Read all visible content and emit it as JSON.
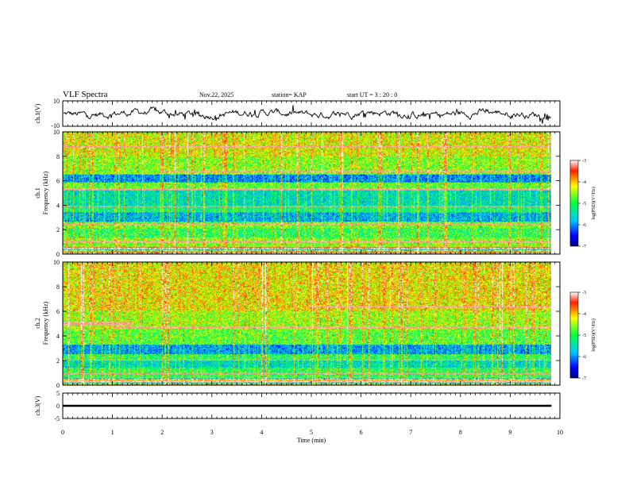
{
  "header": {
    "title": "VLF Spectra",
    "date": "Nov.22, 2025",
    "station": "station= KAP",
    "start_ut": "start  UT =   3  : 20 : 0"
  },
  "chart_data": [
    {
      "type": "line",
      "name": "ch1-waveform",
      "ylabel": "ch.1(V)",
      "ylim": [
        -10,
        10
      ],
      "yticks": [
        "10",
        "-10"
      ],
      "xlim": [
        0,
        10
      ],
      "x_extent": [
        0,
        9.83
      ],
      "y_typical_range": [
        -5,
        5
      ]
    },
    {
      "type": "heatmap",
      "name": "ch1-spectrogram",
      "ylabel": "ch.1\nFrequency (kHz)",
      "ylim": [
        0,
        10
      ],
      "yticks": [
        "0",
        "2",
        "4",
        "6",
        "8",
        "10"
      ],
      "xlim": [
        0,
        10
      ],
      "x_extent": [
        0,
        9.83
      ],
      "colorbar": {
        "label": "log(PSD)(V²/Hz)",
        "range": [
          -7,
          -3
        ],
        "ticks": [
          "-3",
          "-4",
          "-5",
          "-6",
          "-7"
        ]
      },
      "bands": [
        {
          "f": [
            0.0,
            0.6
          ],
          "level": "mixed"
        },
        {
          "f": [
            0.6,
            1.3
          ],
          "level": -4.6
        },
        {
          "f": [
            1.3,
            2.1
          ],
          "level": -5.0
        },
        {
          "f": [
            2.1,
            2.6
          ],
          "level": -4.7
        },
        {
          "f": [
            2.6,
            3.4
          ],
          "level": -5.8
        },
        {
          "f": [
            3.4,
            3.9
          ],
          "level": -5.2
        },
        {
          "f": [
            3.9,
            5.2
          ],
          "level": -5.5
        },
        {
          "f": [
            5.2,
            5.9
          ],
          "level": -4.8
        },
        {
          "f": [
            5.9,
            6.5
          ],
          "level": -6.0
        },
        {
          "f": [
            6.5,
            8.0
          ],
          "level": -4.6
        },
        {
          "f": [
            8.0,
            10.0
          ],
          "level": -4.3
        }
      ]
    },
    {
      "type": "heatmap",
      "name": "ch2-spectrogram",
      "ylabel": "ch.2\nFrequency (kHz)",
      "ylim": [
        0,
        10
      ],
      "yticks": [
        "0",
        "2",
        "4",
        "6",
        "8",
        "10"
      ],
      "xlim": [
        0,
        10
      ],
      "x_extent": [
        0,
        9.83
      ],
      "colorbar": {
        "label": "log(PSD)(V²/Hz)",
        "range": [
          -7,
          -3
        ],
        "ticks": [
          "-3",
          "-4",
          "-5",
          "-6",
          "-7"
        ]
      },
      "bands": [
        {
          "f": [
            0.0,
            0.6
          ],
          "level": "mixed"
        },
        {
          "f": [
            0.6,
            1.4
          ],
          "level": -5.0
        },
        {
          "f": [
            1.4,
            2.0
          ],
          "level": -5.5
        },
        {
          "f": [
            2.0,
            2.5
          ],
          "level": -5.0
        },
        {
          "f": [
            2.5,
            3.3
          ],
          "level": -5.9
        },
        {
          "f": [
            3.3,
            4.5
          ],
          "level": -4.8
        },
        {
          "f": [
            4.5,
            6.0
          ],
          "level": -4.5
        },
        {
          "f": [
            6.0,
            10.0
          ],
          "level": -4.2
        }
      ]
    },
    {
      "type": "line",
      "name": "ch3-waveform",
      "ylabel": "ch.3(V)",
      "ylim": [
        -5,
        5
      ],
      "yticks": [
        "5",
        "0",
        "-5"
      ],
      "xlim": [
        0,
        10
      ],
      "x_extent": [
        0,
        9.83
      ],
      "y_typical_range": [
        -0.4,
        0.4
      ]
    }
  ],
  "x_axis": {
    "label": "Time (min)",
    "ticks": [
      "0",
      "1",
      "2",
      "3",
      "4",
      "5",
      "6",
      "7",
      "8",
      "9",
      "10"
    ]
  }
}
